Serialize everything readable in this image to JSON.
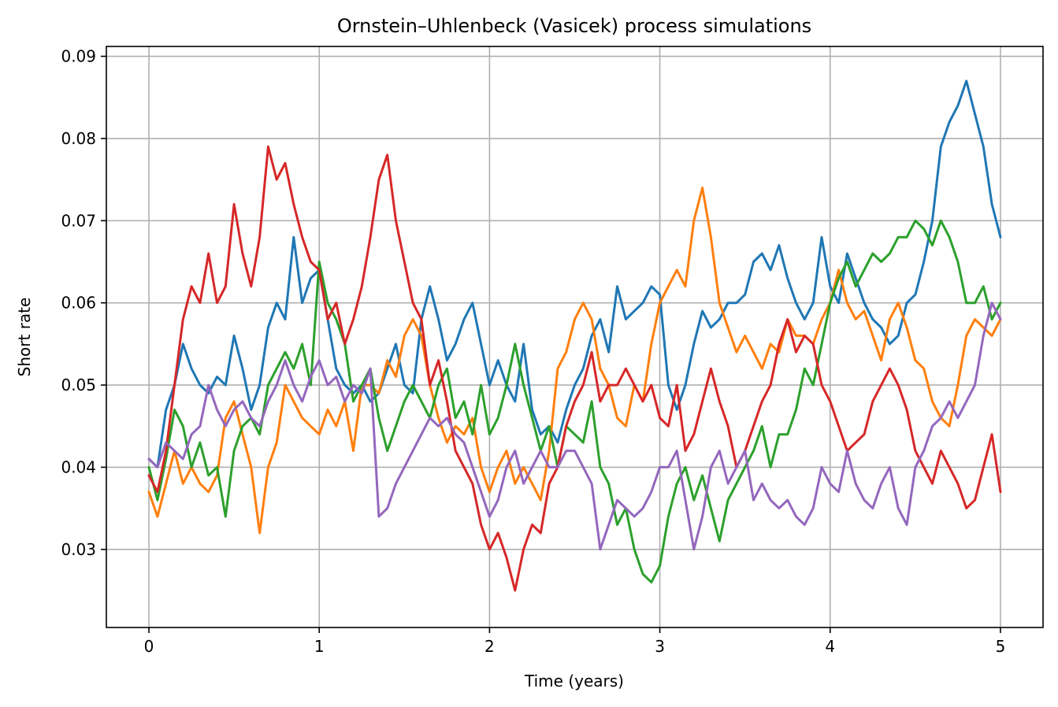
{
  "chart_data": {
    "type": "line",
    "title": "Ornstein–Uhlenbeck (Vasicek) process simulations",
    "xlabel": "Time (years)",
    "ylabel": "Short rate",
    "xlim": [
      -0.25,
      5.25
    ],
    "ylim": [
      0.0205,
      0.0912
    ],
    "x_ticks": [
      0,
      1,
      2,
      3,
      4,
      5
    ],
    "y_ticks": [
      0.03,
      0.04,
      0.05,
      0.06,
      0.07,
      0.08,
      0.09
    ],
    "x_tick_labels": [
      "0",
      "1",
      "2",
      "3",
      "4",
      "5"
    ],
    "y_tick_labels": [
      "0.03",
      "0.04",
      "0.05",
      "0.06",
      "0.07",
      "0.08",
      "0.09"
    ],
    "grid": true,
    "legend": "none",
    "series": [
      {
        "color": "#1f77b4",
        "x": [
          0,
          0.05,
          0.1,
          0.15,
          0.2,
          0.25,
          0.3,
          0.35,
          0.4,
          0.45,
          0.5,
          0.55,
          0.6,
          0.65,
          0.7,
          0.75,
          0.8,
          0.85,
          0.9,
          0.95,
          1.0,
          1.05,
          1.1,
          1.15,
          1.2,
          1.25,
          1.3,
          1.35,
          1.4,
          1.45,
          1.5,
          1.55,
          1.6,
          1.65,
          1.7,
          1.75,
          1.8,
          1.85,
          1.9,
          1.95,
          2.0,
          2.05,
          2.1,
          2.15,
          2.2,
          2.25,
          2.3,
          2.35,
          2.4,
          2.45,
          2.5,
          2.55,
          2.6,
          2.65,
          2.7,
          2.75,
          2.8,
          2.85,
          2.9,
          2.95,
          3.0,
          3.05,
          3.1,
          3.15,
          3.2,
          3.25,
          3.3,
          3.35,
          3.4,
          3.45,
          3.5,
          3.55,
          3.6,
          3.65,
          3.7,
          3.75,
          3.8,
          3.85,
          3.9,
          3.95,
          4.0,
          4.05,
          4.1,
          4.15,
          4.2,
          4.25,
          4.3,
          4.35,
          4.4,
          4.45,
          4.5,
          4.55,
          4.6,
          4.65,
          4.7,
          4.75,
          4.8,
          4.85,
          4.9,
          4.95,
          5.0
        ],
        "y": [
          0.041,
          0.04,
          0.047,
          0.05,
          0.055,
          0.052,
          0.05,
          0.049,
          0.051,
          0.05,
          0.056,
          0.052,
          0.047,
          0.05,
          0.057,
          0.06,
          0.058,
          0.068,
          0.06,
          0.063,
          0.064,
          0.058,
          0.052,
          0.05,
          0.049,
          0.05,
          0.048,
          0.049,
          0.052,
          0.055,
          0.05,
          0.049,
          0.058,
          0.062,
          0.058,
          0.053,
          0.055,
          0.058,
          0.06,
          0.055,
          0.05,
          0.053,
          0.05,
          0.048,
          0.055,
          0.047,
          0.044,
          0.045,
          0.043,
          0.047,
          0.05,
          0.052,
          0.056,
          0.058,
          0.054,
          0.062,
          0.058,
          0.059,
          0.06,
          0.062,
          0.061,
          0.05,
          0.047,
          0.05,
          0.055,
          0.059,
          0.057,
          0.058,
          0.06,
          0.06,
          0.061,
          0.065,
          0.066,
          0.064,
          0.067,
          0.063,
          0.06,
          0.058,
          0.06,
          0.068,
          0.062,
          0.06,
          0.066,
          0.063,
          0.06,
          0.058,
          0.057,
          0.055,
          0.056,
          0.06,
          0.061,
          0.065,
          0.07,
          0.079,
          0.082,
          0.084,
          0.087,
          0.083,
          0.079,
          0.072,
          0.068
        ]
      },
      {
        "color": "#ff7f0e",
        "x": [
          0,
          0.05,
          0.1,
          0.15,
          0.2,
          0.25,
          0.3,
          0.35,
          0.4,
          0.45,
          0.5,
          0.55,
          0.6,
          0.65,
          0.7,
          0.75,
          0.8,
          0.85,
          0.9,
          0.95,
          1.0,
          1.05,
          1.1,
          1.15,
          1.2,
          1.25,
          1.3,
          1.35,
          1.4,
          1.45,
          1.5,
          1.55,
          1.6,
          1.65,
          1.7,
          1.75,
          1.8,
          1.85,
          1.9,
          1.95,
          2.0,
          2.05,
          2.1,
          2.15,
          2.2,
          2.25,
          2.3,
          2.35,
          2.4,
          2.45,
          2.5,
          2.55,
          2.6,
          2.65,
          2.7,
          2.75,
          2.8,
          2.85,
          2.9,
          2.95,
          3.0,
          3.05,
          3.1,
          3.15,
          3.2,
          3.25,
          3.3,
          3.35,
          3.4,
          3.45,
          3.5,
          3.55,
          3.6,
          3.65,
          3.7,
          3.75,
          3.8,
          3.85,
          3.9,
          3.95,
          4.0,
          4.05,
          4.1,
          4.15,
          4.2,
          4.25,
          4.3,
          4.35,
          4.4,
          4.45,
          4.5,
          4.55,
          4.6,
          4.65,
          4.7,
          4.75,
          4.8,
          4.85,
          4.9,
          4.95,
          5.0
        ],
        "y": [
          0.037,
          0.034,
          0.038,
          0.042,
          0.038,
          0.04,
          0.038,
          0.037,
          0.039,
          0.046,
          0.048,
          0.044,
          0.04,
          0.032,
          0.04,
          0.043,
          0.05,
          0.048,
          0.046,
          0.045,
          0.044,
          0.047,
          0.045,
          0.048,
          0.042,
          0.05,
          0.05,
          0.049,
          0.053,
          0.051,
          0.056,
          0.058,
          0.056,
          0.05,
          0.046,
          0.043,
          0.045,
          0.044,
          0.046,
          0.04,
          0.037,
          0.04,
          0.042,
          0.038,
          0.04,
          0.038,
          0.036,
          0.042,
          0.052,
          0.054,
          0.058,
          0.06,
          0.058,
          0.052,
          0.05,
          0.046,
          0.045,
          0.05,
          0.048,
          0.055,
          0.06,
          0.062,
          0.064,
          0.062,
          0.07,
          0.074,
          0.068,
          0.06,
          0.057,
          0.054,
          0.056,
          0.054,
          0.052,
          0.055,
          0.054,
          0.058,
          0.056,
          0.056,
          0.055,
          0.058,
          0.06,
          0.064,
          0.06,
          0.058,
          0.059,
          0.056,
          0.053,
          0.058,
          0.06,
          0.057,
          0.053,
          0.052,
          0.048,
          0.046,
          0.045,
          0.05,
          0.056,
          0.058,
          0.057,
          0.056,
          0.058
        ]
      },
      {
        "color": "#2ca02c",
        "x": [
          0,
          0.05,
          0.1,
          0.15,
          0.2,
          0.25,
          0.3,
          0.35,
          0.4,
          0.45,
          0.5,
          0.55,
          0.6,
          0.65,
          0.7,
          0.75,
          0.8,
          0.85,
          0.9,
          0.95,
          1.0,
          1.05,
          1.1,
          1.15,
          1.2,
          1.25,
          1.3,
          1.35,
          1.4,
          1.45,
          1.5,
          1.55,
          1.6,
          1.65,
          1.7,
          1.75,
          1.8,
          1.85,
          1.9,
          1.95,
          2.0,
          2.05,
          2.1,
          2.15,
          2.2,
          2.25,
          2.3,
          2.35,
          2.4,
          2.45,
          2.5,
          2.55,
          2.6,
          2.65,
          2.7,
          2.75,
          2.8,
          2.85,
          2.9,
          2.95,
          3.0,
          3.05,
          3.1,
          3.15,
          3.2,
          3.25,
          3.3,
          3.35,
          3.4,
          3.45,
          3.5,
          3.55,
          3.6,
          3.65,
          3.7,
          3.75,
          3.8,
          3.85,
          3.9,
          3.95,
          4.0,
          4.05,
          4.1,
          4.15,
          4.2,
          4.25,
          4.3,
          4.35,
          4.4,
          4.45,
          4.5,
          4.55,
          4.6,
          4.65,
          4.7,
          4.75,
          4.8,
          4.85,
          4.9,
          4.95,
          5.0
        ],
        "y": [
          0.04,
          0.036,
          0.041,
          0.047,
          0.045,
          0.04,
          0.043,
          0.039,
          0.04,
          0.034,
          0.042,
          0.045,
          0.046,
          0.044,
          0.05,
          0.052,
          0.054,
          0.052,
          0.055,
          0.05,
          0.065,
          0.06,
          0.058,
          0.055,
          0.048,
          0.05,
          0.052,
          0.046,
          0.042,
          0.045,
          0.048,
          0.05,
          0.048,
          0.046,
          0.05,
          0.052,
          0.046,
          0.048,
          0.044,
          0.05,
          0.044,
          0.046,
          0.05,
          0.055,
          0.05,
          0.046,
          0.042,
          0.045,
          0.04,
          0.045,
          0.044,
          0.043,
          0.048,
          0.04,
          0.038,
          0.033,
          0.035,
          0.03,
          0.027,
          0.026,
          0.028,
          0.034,
          0.038,
          0.04,
          0.036,
          0.039,
          0.035,
          0.031,
          0.036,
          0.038,
          0.04,
          0.042,
          0.045,
          0.04,
          0.044,
          0.044,
          0.047,
          0.052,
          0.05,
          0.055,
          0.06,
          0.063,
          0.065,
          0.062,
          0.064,
          0.066,
          0.065,
          0.066,
          0.068,
          0.068,
          0.07,
          0.069,
          0.067,
          0.07,
          0.068,
          0.065,
          0.06,
          0.06,
          0.062,
          0.058,
          0.06
        ]
      },
      {
        "color": "#d62728",
        "x": [
          0,
          0.05,
          0.1,
          0.15,
          0.2,
          0.25,
          0.3,
          0.35,
          0.4,
          0.45,
          0.5,
          0.55,
          0.6,
          0.65,
          0.7,
          0.75,
          0.8,
          0.85,
          0.9,
          0.95,
          1.0,
          1.05,
          1.1,
          1.15,
          1.2,
          1.25,
          1.3,
          1.35,
          1.4,
          1.45,
          1.5,
          1.55,
          1.6,
          1.65,
          1.7,
          1.75,
          1.8,
          1.85,
          1.9,
          1.95,
          2.0,
          2.05,
          2.1,
          2.15,
          2.2,
          2.25,
          2.3,
          2.35,
          2.4,
          2.45,
          2.5,
          2.55,
          2.6,
          2.65,
          2.7,
          2.75,
          2.8,
          2.85,
          2.9,
          2.95,
          3.0,
          3.05,
          3.1,
          3.15,
          3.2,
          3.25,
          3.3,
          3.35,
          3.4,
          3.45,
          3.5,
          3.55,
          3.6,
          3.65,
          3.7,
          3.75,
          3.8,
          3.85,
          3.9,
          3.95,
          4.0,
          4.05,
          4.1,
          4.15,
          4.2,
          4.25,
          4.3,
          4.35,
          4.4,
          4.45,
          4.5,
          4.55,
          4.6,
          4.65,
          4.7,
          4.75,
          4.8,
          4.85,
          4.9,
          4.95,
          5.0
        ],
        "y": [
          0.039,
          0.037,
          0.042,
          0.05,
          0.058,
          0.062,
          0.06,
          0.066,
          0.06,
          0.062,
          0.072,
          0.066,
          0.062,
          0.068,
          0.079,
          0.075,
          0.077,
          0.072,
          0.068,
          0.065,
          0.064,
          0.058,
          0.06,
          0.055,
          0.058,
          0.062,
          0.068,
          0.075,
          0.078,
          0.07,
          0.065,
          0.06,
          0.058,
          0.05,
          0.053,
          0.048,
          0.042,
          0.04,
          0.038,
          0.033,
          0.03,
          0.032,
          0.029,
          0.025,
          0.03,
          0.033,
          0.032,
          0.038,
          0.04,
          0.045,
          0.048,
          0.05,
          0.054,
          0.048,
          0.05,
          0.05,
          0.052,
          0.05,
          0.048,
          0.05,
          0.046,
          0.045,
          0.05,
          0.042,
          0.044,
          0.048,
          0.052,
          0.048,
          0.045,
          0.04,
          0.042,
          0.045,
          0.048,
          0.05,
          0.055,
          0.058,
          0.054,
          0.056,
          0.055,
          0.05,
          0.048,
          0.045,
          0.042,
          0.043,
          0.044,
          0.048,
          0.05,
          0.052,
          0.05,
          0.047,
          0.042,
          0.04,
          0.038,
          0.042,
          0.04,
          0.038,
          0.035,
          0.036,
          0.04,
          0.044,
          0.037
        ]
      },
      {
        "color": "#9467bd",
        "x": [
          0,
          0.05,
          0.1,
          0.15,
          0.2,
          0.25,
          0.3,
          0.35,
          0.4,
          0.45,
          0.5,
          0.55,
          0.6,
          0.65,
          0.7,
          0.75,
          0.8,
          0.85,
          0.9,
          0.95,
          1.0,
          1.05,
          1.1,
          1.15,
          1.2,
          1.25,
          1.3,
          1.35,
          1.4,
          1.45,
          1.5,
          1.55,
          1.6,
          1.65,
          1.7,
          1.75,
          1.8,
          1.85,
          1.9,
          1.95,
          2.0,
          2.05,
          2.1,
          2.15,
          2.2,
          2.25,
          2.3,
          2.35,
          2.4,
          2.45,
          2.5,
          2.55,
          2.6,
          2.65,
          2.7,
          2.75,
          2.8,
          2.85,
          2.9,
          2.95,
          3.0,
          3.05,
          3.1,
          3.15,
          3.2,
          3.25,
          3.3,
          3.35,
          3.4,
          3.45,
          3.5,
          3.55,
          3.6,
          3.65,
          3.7,
          3.75,
          3.8,
          3.85,
          3.9,
          3.95,
          4.0,
          4.05,
          4.1,
          4.15,
          4.2,
          4.25,
          4.3,
          4.35,
          4.4,
          4.45,
          4.5,
          4.55,
          4.6,
          4.65,
          4.7,
          4.75,
          4.8,
          4.85,
          4.9,
          4.95,
          5.0
        ],
        "y": [
          0.041,
          0.04,
          0.043,
          0.042,
          0.041,
          0.044,
          0.045,
          0.05,
          0.047,
          0.045,
          0.047,
          0.048,
          0.046,
          0.045,
          0.048,
          0.05,
          0.053,
          0.05,
          0.048,
          0.051,
          0.053,
          0.05,
          0.051,
          0.048,
          0.05,
          0.049,
          0.052,
          0.034,
          0.035,
          0.038,
          0.04,
          0.042,
          0.044,
          0.046,
          0.045,
          0.046,
          0.044,
          0.043,
          0.04,
          0.037,
          0.034,
          0.036,
          0.04,
          0.042,
          0.038,
          0.04,
          0.042,
          0.04,
          0.04,
          0.042,
          0.042,
          0.04,
          0.038,
          0.03,
          0.033,
          0.036,
          0.035,
          0.034,
          0.035,
          0.037,
          0.04,
          0.04,
          0.042,
          0.036,
          0.03,
          0.034,
          0.04,
          0.042,
          0.038,
          0.04,
          0.042,
          0.036,
          0.038,
          0.036,
          0.035,
          0.036,
          0.034,
          0.033,
          0.035,
          0.04,
          0.038,
          0.037,
          0.042,
          0.038,
          0.036,
          0.035,
          0.038,
          0.04,
          0.035,
          0.033,
          0.04,
          0.042,
          0.045,
          0.046,
          0.048,
          0.046,
          0.048,
          0.05,
          0.056,
          0.06,
          0.058
        ]
      }
    ]
  }
}
